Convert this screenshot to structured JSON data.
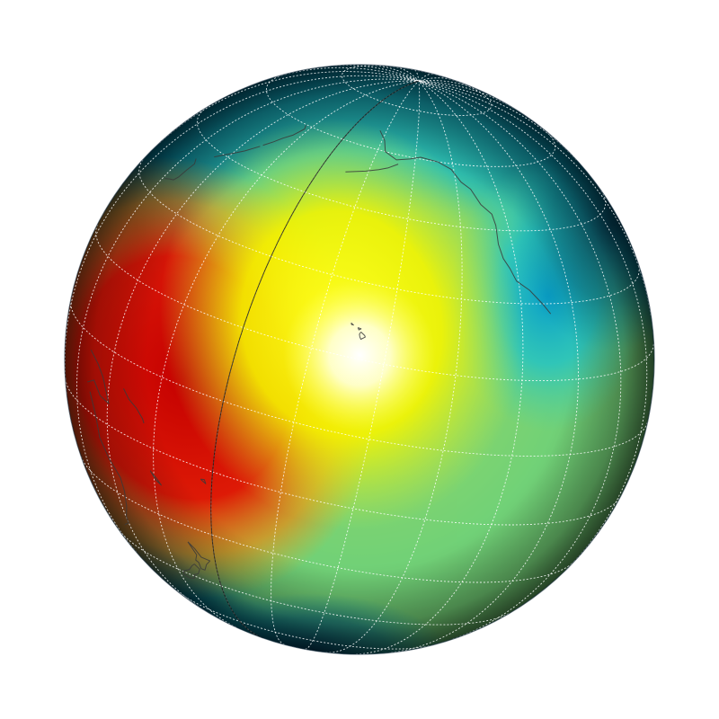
{
  "map": {
    "projection": "orthographic",
    "center_lon": -155,
    "center_lat": 15,
    "colormap": [
      "#001a33",
      "#008fb5",
      "#1fd1c6",
      "#b8e84a",
      "#ffff33",
      "#ff9a00",
      "#e60000",
      "#b30000"
    ],
    "hotspot_color": "#ffffff",
    "graticule_color": "#ffffff",
    "coast_color": "#3a3a3a",
    "meridian_line_color": "#111111",
    "graticule": true,
    "lat_step": 15,
    "lon_step": 15
  }
}
